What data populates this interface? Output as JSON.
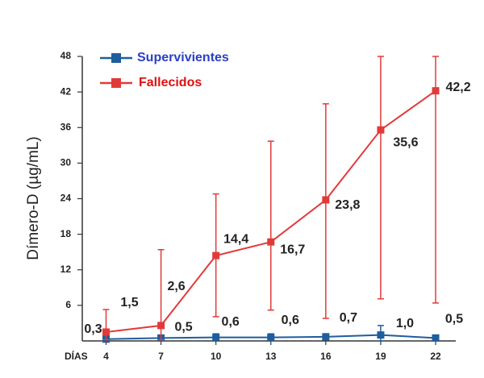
{
  "chart_data": {
    "type": "line",
    "y_label": "Dímero-D (µg/mL)",
    "x_label": "DÍAS",
    "x": [
      4,
      7,
      10,
      13,
      16,
      19,
      22
    ],
    "xlim": [
      2.7,
      23.1
    ],
    "xticks": [
      4,
      7,
      10,
      13,
      16,
      19,
      22
    ],
    "ylim": [
      0,
      48
    ],
    "yticks": [
      6,
      12,
      18,
      24,
      30,
      36,
      42,
      48
    ],
    "grid": false,
    "legend": "top-left",
    "series": [
      {
        "name": "Supervivientes",
        "color": "#1f5d9c",
        "label_color": "#2b3fc4",
        "values": [
          0.3,
          0.5,
          0.6,
          0.6,
          0.7,
          1.0,
          0.5
        ],
        "value_labels": [
          "0,3",
          "0,5",
          "0,6",
          "0,6",
          "0,7",
          "1,0",
          "0,5"
        ],
        "errors_minus": [
          0.3,
          0.4,
          0.6,
          0.6,
          0.5,
          1.0,
          0.3
        ],
        "errors_plus": [
          0.5,
          0.4,
          0.6,
          0.6,
          0.5,
          1.6,
          0.3
        ]
      },
      {
        "name": "Fallecidos",
        "color": "#e23a3a",
        "label_color": "#e01010",
        "values": [
          1.5,
          2.6,
          14.4,
          16.7,
          23.8,
          35.6,
          42.2
        ],
        "value_labels": [
          "1,5",
          "2,6",
          "14,4",
          "16,7",
          "23,8",
          "35,6",
          "42,2"
        ],
        "errors_minus": [
          1.3,
          2.4,
          10.3,
          11.5,
          20,
          28.5,
          35.8
        ],
        "errors_plus": [
          3.8,
          12.8,
          10.4,
          17,
          16.2,
          12.4,
          5.8
        ]
      }
    ]
  }
}
